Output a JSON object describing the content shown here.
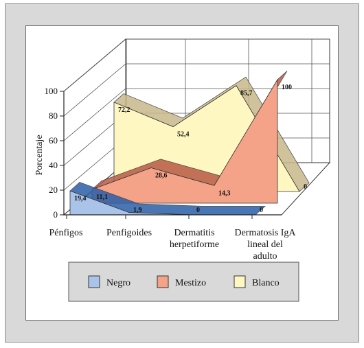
{
  "chart_data": {
    "type": "area",
    "categories": [
      "Pénfigos",
      "Penfigoides",
      "Dermatitis herpetiforme",
      "Dermatosis IgA lineal del adulto"
    ],
    "category_lines": [
      [
        "Pénfigos"
      ],
      [
        "Penfigoides"
      ],
      [
        "Dermatitis",
        "herpetiforme"
      ],
      [
        "Dermatosis IgA",
        "lineal del",
        "adulto"
      ]
    ],
    "ylabel": "Porcentaje",
    "ylim": [
      0,
      100
    ],
    "yticks": [
      "0",
      "20",
      "40",
      "60",
      "80",
      "100"
    ],
    "series": [
      {
        "name": "Negro",
        "values": [
          19.4,
          1.9,
          0,
          0
        ],
        "labels": [
          "19,4",
          "1,9",
          "0",
          "0"
        ],
        "color": "#a9c4e8",
        "edge": "#2b5fa8"
      },
      {
        "name": "Mestizo",
        "values": [
          11.1,
          28.6,
          14.3,
          100
        ],
        "labels": [
          "11,1",
          "28,6",
          "14,3",
          "100"
        ],
        "color": "#f4a288",
        "edge": "#b85a45"
      },
      {
        "name": "Blanco",
        "values": [
          72.2,
          52.4,
          85.7,
          0
        ],
        "labels": [
          "72,2",
          "52,4",
          "85,7",
          "0"
        ],
        "color": "#fff7c2",
        "edge": "#c8b98a"
      }
    ],
    "grid": true,
    "legend_position": "bottom"
  }
}
